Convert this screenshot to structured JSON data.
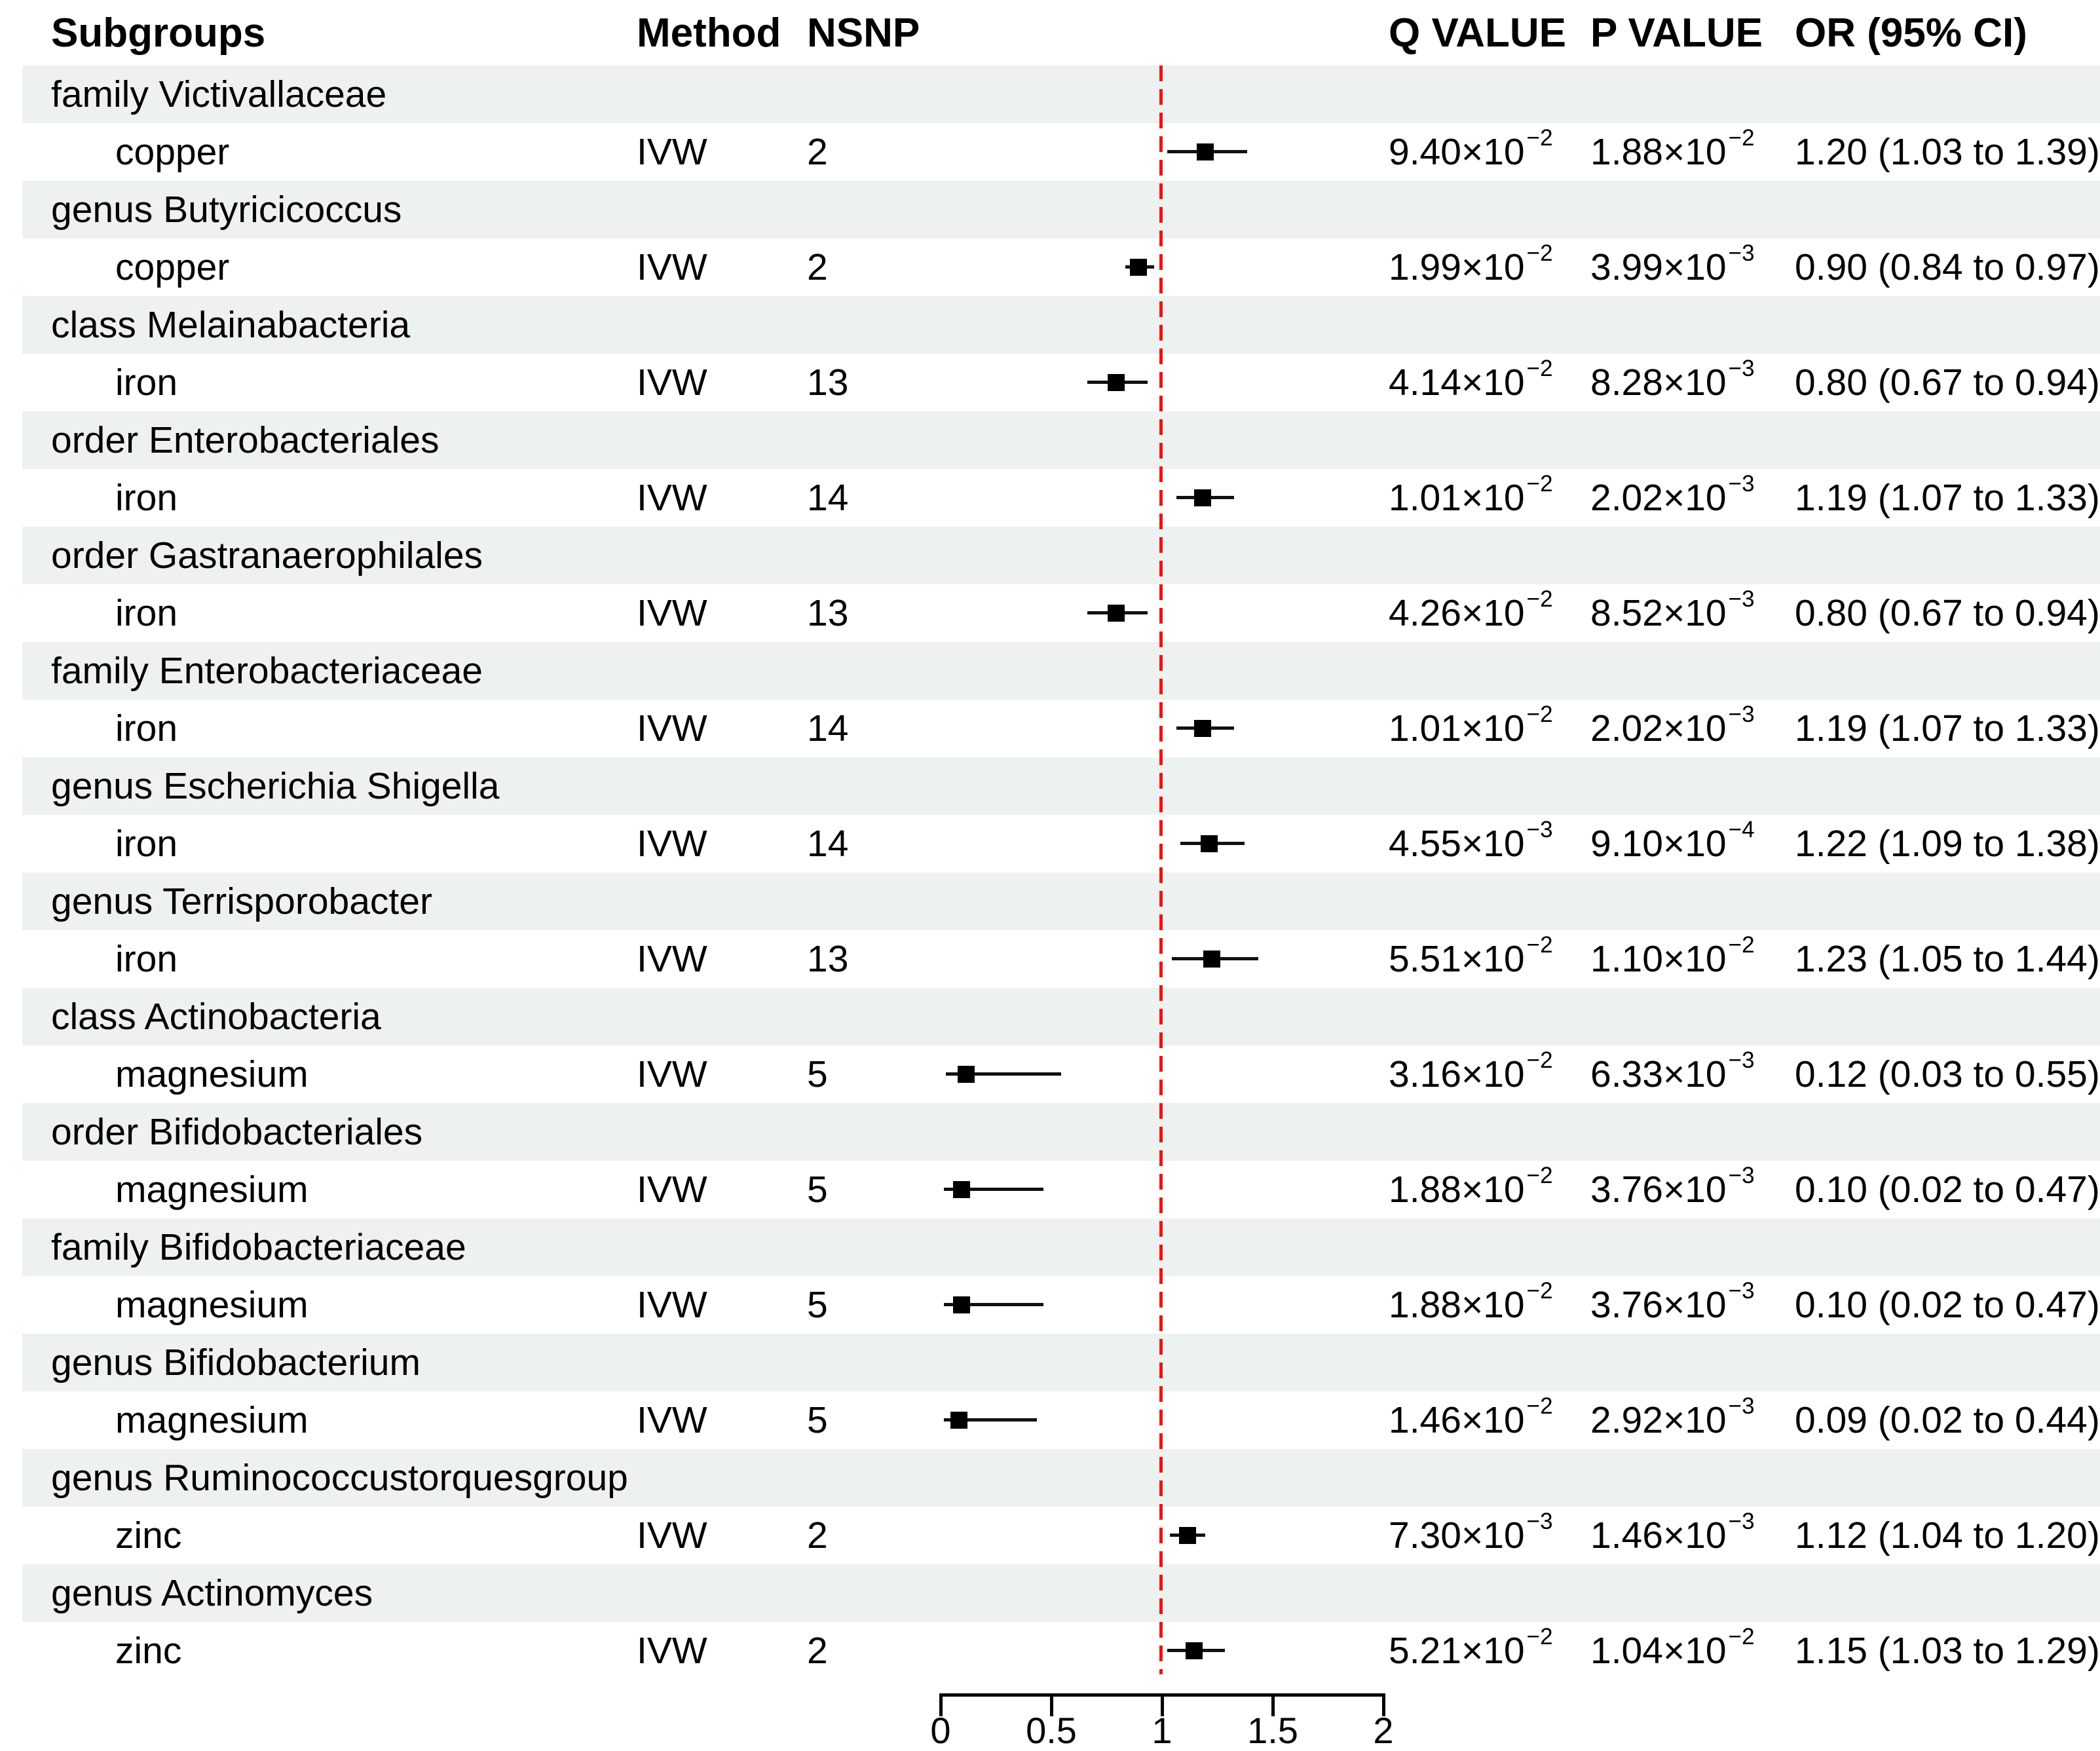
{
  "header": {
    "subgroups": "Subgroups",
    "method": "Method",
    "nsnp": "NSNP",
    "q_value": "Q VALUE",
    "p_value": "P VALUE",
    "or_ci": "OR (95% CI)"
  },
  "colors": {
    "reference_line": "#f2120d",
    "marker": "#000000",
    "ci_line": "#111111",
    "row_shade": "#edf1f0",
    "axis": "#000000",
    "text": "#000000"
  },
  "chart_data": {
    "type": "forest",
    "title": "",
    "xlabel": "",
    "legend": null,
    "axis": {
      "min": 0,
      "max": 2,
      "reference_value": 1,
      "ticks": [
        {
          "value": 0,
          "label": "0"
        },
        {
          "value": 0.5,
          "label": "0.5"
        },
        {
          "value": 1,
          "label": "1"
        },
        {
          "value": 1.5,
          "label": "1.5"
        },
        {
          "value": 2,
          "label": "2"
        }
      ]
    },
    "rows": [
      {
        "subgroup": "family Victivallaceae",
        "exposure": "copper",
        "method": "IVW",
        "nsnp": "2",
        "q": {
          "base": "9.40×10",
          "exp": "−2"
        },
        "p": {
          "base": "1.88×10",
          "exp": "−2"
        },
        "or_ci": "1.20 (1.03 to 1.39)",
        "or": 1.2,
        "ci_low": 1.03,
        "ci_high": 1.39
      },
      {
        "subgroup": "genus Butyricicoccus",
        "exposure": "copper",
        "method": "IVW",
        "nsnp": "2",
        "q": {
          "base": "1.99×10",
          "exp": "−2"
        },
        "p": {
          "base": "3.99×10",
          "exp": "−3"
        },
        "or_ci": "0.90 (0.84 to 0.97)",
        "or": 0.9,
        "ci_low": 0.84,
        "ci_high": 0.97
      },
      {
        "subgroup": "class Melainabacteria",
        "exposure": "iron",
        "method": "IVW",
        "nsnp": "13",
        "q": {
          "base": "4.14×10",
          "exp": "−2"
        },
        "p": {
          "base": "8.28×10",
          "exp": "−3"
        },
        "or_ci": "0.80 (0.67 to 0.94)",
        "or": 0.8,
        "ci_low": 0.67,
        "ci_high": 0.94
      },
      {
        "subgroup": "order Enterobacteriales",
        "exposure": "iron",
        "method": "IVW",
        "nsnp": "14",
        "q": {
          "base": "1.01×10",
          "exp": "−2"
        },
        "p": {
          "base": "2.02×10",
          "exp": "−3"
        },
        "or_ci": "1.19 (1.07 to 1.33)",
        "or": 1.19,
        "ci_low": 1.07,
        "ci_high": 1.33
      },
      {
        "subgroup": "order Gastranaerophilales",
        "exposure": "iron",
        "method": "IVW",
        "nsnp": "13",
        "q": {
          "base": "4.26×10",
          "exp": "−2"
        },
        "p": {
          "base": "8.52×10",
          "exp": "−3"
        },
        "or_ci": "0.80 (0.67 to 0.94)",
        "or": 0.8,
        "ci_low": 0.67,
        "ci_high": 0.94
      },
      {
        "subgroup": "family Enterobacteriaceae",
        "exposure": "iron",
        "method": "IVW",
        "nsnp": "14",
        "q": {
          "base": "1.01×10",
          "exp": "−2"
        },
        "p": {
          "base": "2.02×10",
          "exp": "−3"
        },
        "or_ci": "1.19 (1.07 to 1.33)",
        "or": 1.19,
        "ci_low": 1.07,
        "ci_high": 1.33
      },
      {
        "subgroup": "genus Escherichia Shigella",
        "exposure": "iron",
        "method": "IVW",
        "nsnp": "14",
        "q": {
          "base": "4.55×10",
          "exp": "−3"
        },
        "p": {
          "base": "9.10×10",
          "exp": "−4"
        },
        "or_ci": "1.22 (1.09 to 1.38)",
        "or": 1.22,
        "ci_low": 1.09,
        "ci_high": 1.38
      },
      {
        "subgroup": "genus Terrisporobacter",
        "exposure": "iron",
        "method": "IVW",
        "nsnp": "13",
        "q": {
          "base": "5.51×10",
          "exp": "−2"
        },
        "p": {
          "base": "1.10×10",
          "exp": "−2"
        },
        "or_ci": "1.23 (1.05 to 1.44)",
        "or": 1.23,
        "ci_low": 1.05,
        "ci_high": 1.44
      },
      {
        "subgroup": "class Actinobacteria",
        "exposure": "magnesium",
        "method": "IVW",
        "nsnp": "5",
        "q": {
          "base": "3.16×10",
          "exp": "−2"
        },
        "p": {
          "base": "6.33×10",
          "exp": "−3"
        },
        "or_ci": "0.12 (0.03 to 0.55)",
        "or": 0.12,
        "ci_low": 0.03,
        "ci_high": 0.55
      },
      {
        "subgroup": "order Bifidobacteriales",
        "exposure": "magnesium",
        "method": "IVW",
        "nsnp": "5",
        "q": {
          "base": "1.88×10",
          "exp": "−2"
        },
        "p": {
          "base": "3.76×10",
          "exp": "−3"
        },
        "or_ci": "0.10 (0.02 to 0.47)",
        "or": 0.1,
        "ci_low": 0.02,
        "ci_high": 0.47
      },
      {
        "subgroup": "family Bifidobacteriaceae",
        "exposure": "magnesium",
        "method": "IVW",
        "nsnp": "5",
        "q": {
          "base": "1.88×10",
          "exp": "−2"
        },
        "p": {
          "base": "3.76×10",
          "exp": "−3"
        },
        "or_ci": "0.10 (0.02 to 0.47)",
        "or": 0.1,
        "ci_low": 0.02,
        "ci_high": 0.47
      },
      {
        "subgroup": "genus Bifidobacterium",
        "exposure": "magnesium",
        "method": "IVW",
        "nsnp": "5",
        "q": {
          "base": "1.46×10",
          "exp": "−2"
        },
        "p": {
          "base": "2.92×10",
          "exp": "−3"
        },
        "or_ci": "0.09 (0.02 to 0.44)",
        "or": 0.09,
        "ci_low": 0.02,
        "ci_high": 0.44
      },
      {
        "subgroup": "genus Ruminococcustorquesgroup",
        "exposure": "zinc",
        "method": "IVW",
        "nsnp": "2",
        "q": {
          "base": "7.30×10",
          "exp": "−3"
        },
        "p": {
          "base": "1.46×10",
          "exp": "−3"
        },
        "or_ci": "1.12 (1.04 to 1.20)",
        "or": 1.12,
        "ci_low": 1.04,
        "ci_high": 1.2
      },
      {
        "subgroup": "genus Actinomyces",
        "exposure": "zinc",
        "method": "IVW",
        "nsnp": "2",
        "q": {
          "base": "5.21×10",
          "exp": "−2"
        },
        "p": {
          "base": "1.04×10",
          "exp": "−2"
        },
        "or_ci": "1.15 (1.03 to 1.29)",
        "or": 1.15,
        "ci_low": 1.03,
        "ci_high": 1.29
      }
    ]
  }
}
